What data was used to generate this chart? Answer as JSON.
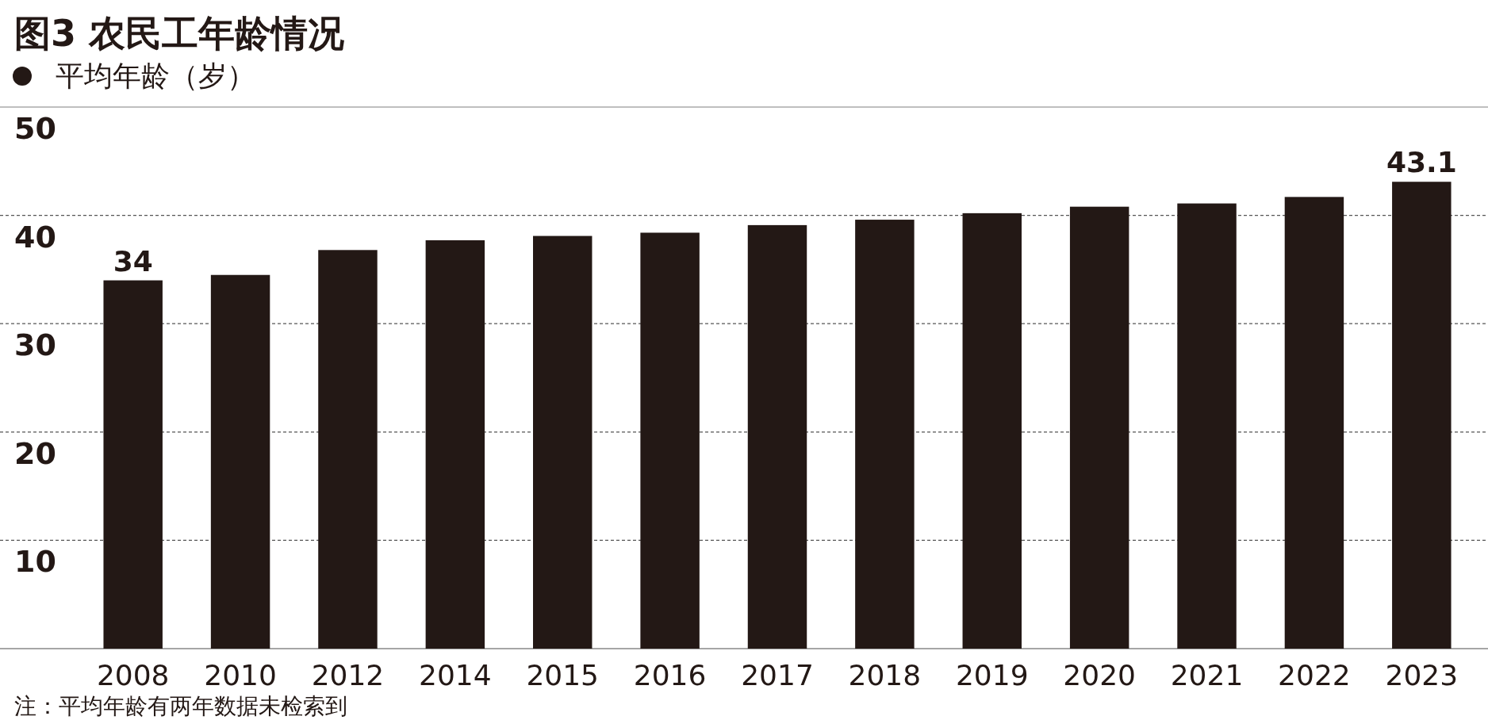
{
  "chart_data": {
    "type": "bar",
    "title": "图3 农民工年龄情况",
    "categories": [
      "2008",
      "2010",
      "2012",
      "2014",
      "2015",
      "2016",
      "2017",
      "2018",
      "2019",
      "2020",
      "2021",
      "2022",
      "2023"
    ],
    "series": [
      {
        "name": "平均年龄（岁）",
        "color": "#231815",
        "values": [
          34,
          34.5,
          36.8,
          37.7,
          38.1,
          38.4,
          39.1,
          39.6,
          40.2,
          40.8,
          41.1,
          41.7,
          43.1
        ],
        "value_labels": [
          "34",
          null,
          null,
          null,
          null,
          null,
          null,
          null,
          null,
          null,
          null,
          null,
          "43.1"
        ]
      }
    ],
    "ylim": [
      0,
      50
    ],
    "yticks": [
      {
        "value": 0,
        "label": null
      },
      10,
      20,
      30,
      40,
      50
    ],
    "grid": "y",
    "legend": "top left",
    "annotations": [
      "注：平均年龄有两年数据未检索到"
    ]
  }
}
